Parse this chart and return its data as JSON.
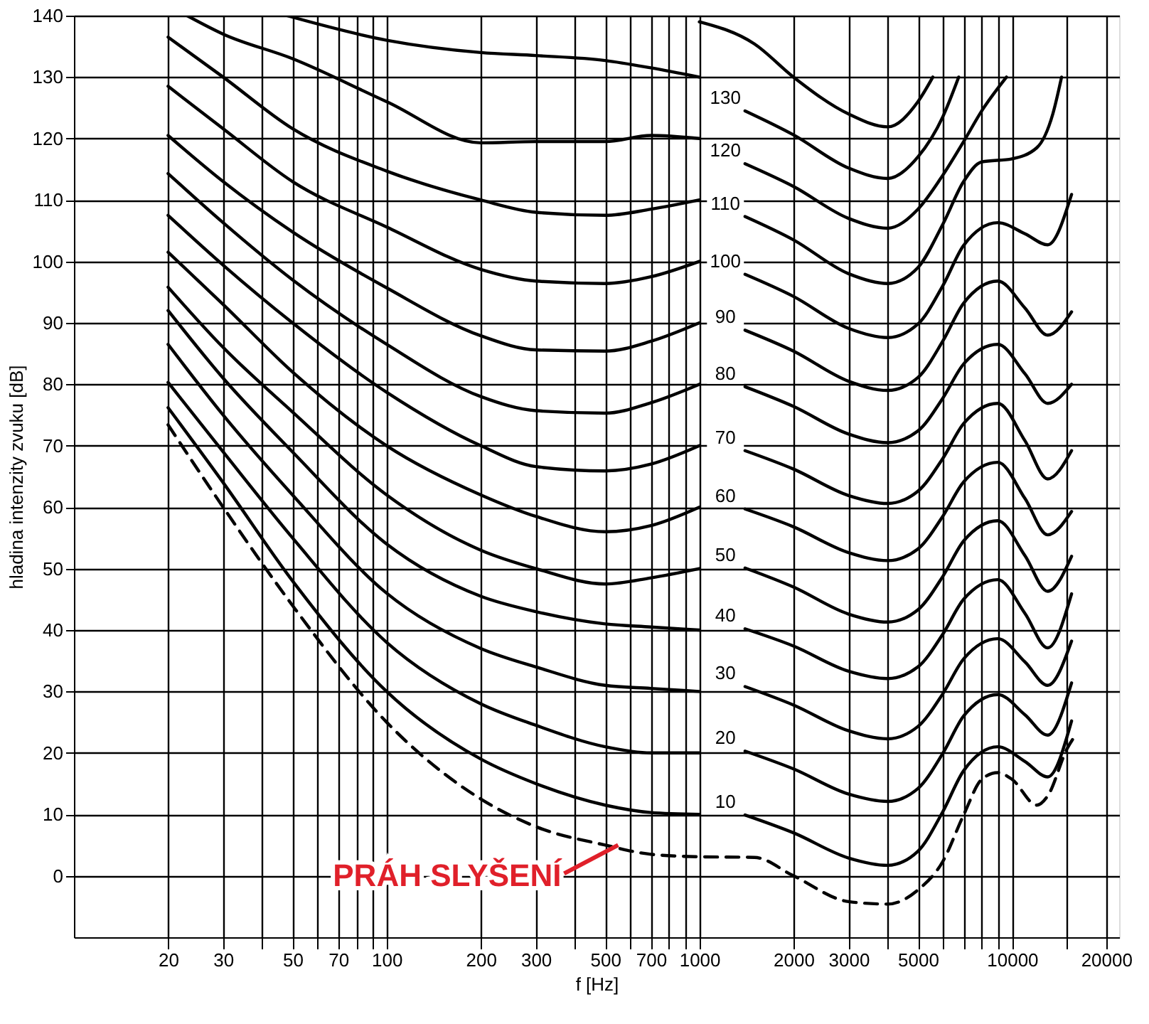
{
  "chart_data": {
    "type": "line",
    "xlabel": "f [Hz]",
    "ylabel": "hladina intenzity zvuku [dB]",
    "log": "x",
    "xlim": [
      10,
      22000
    ],
    "ylim": [
      -10,
      140
    ],
    "xticks": [
      20,
      30,
      {
        "value": 40,
        "label": null
      },
      50,
      {
        "value": 60,
        "label": null
      },
      70,
      {
        "value": 80,
        "label": null
      },
      {
        "value": 90,
        "label": null
      },
      100,
      200,
      300,
      {
        "value": 400,
        "label": null
      },
      500,
      {
        "value": 600,
        "label": null
      },
      700,
      {
        "value": 800,
        "label": null
      },
      {
        "value": 900,
        "label": null
      },
      1000,
      2000,
      3000,
      {
        "value": 4000,
        "label": null
      },
      5000,
      {
        "value": 6000,
        "label": null
      },
      {
        "value": 7000,
        "label": null
      },
      {
        "value": 8000,
        "label": null
      },
      {
        "value": 9000,
        "label": null
      },
      10000,
      {
        "value": 15000,
        "label": null
      },
      20000
    ],
    "yticks": [
      0,
      10,
      20,
      30,
      40,
      50,
      60,
      70,
      80,
      90,
      100,
      110,
      120,
      130,
      140
    ],
    "grid": true,
    "legend": false,
    "line_style": "solid",
    "series": [
      {
        "color": "#000000",
        "x": [
          1000,
          1500,
          2000,
          3000,
          4000,
          5000,
          5580
        ],
        "values": [
          139,
          135.4,
          130,
          124,
          121.9,
          126,
          130
        ]
      },
      {
        "name": "130",
        "color": "#000000",
        "x": [
          48,
          100,
          200,
          300,
          500,
          700,
          1000,
          1150,
          1400,
          2000,
          3000,
          4000,
          5000,
          6000,
          6750
        ],
        "values": [
          140,
          136,
          134,
          133.5,
          132.7,
          131.5,
          130,
          null,
          124.5,
          120.6,
          115.2,
          113.5,
          117,
          123.5,
          130
        ]
      },
      {
        "name": "120",
        "color": "#000000",
        "x": [
          23,
          30,
          50,
          100,
          200,
          300,
          500,
          700,
          1000,
          1150,
          1400,
          2000,
          3000,
          4000,
          5000,
          6000,
          7000,
          8000,
          9600
        ],
        "values": [
          140,
          137,
          133,
          126,
          119.3,
          119.5,
          119.5,
          120.5,
          120,
          null,
          115.9,
          112.2,
          107,
          105.4,
          108.5,
          114,
          119.5,
          124.5,
          130
        ]
      },
      {
        "name": "110",
        "color": "#000000",
        "x": [
          20,
          30,
          50,
          100,
          200,
          300,
          500,
          700,
          1000,
          1150,
          1400,
          2000,
          3000,
          4000,
          5000,
          6000,
          7000,
          8000,
          10000,
          12000,
          13500,
          14400
        ],
        "values": [
          136.5,
          130,
          121.6,
          114.7,
          110,
          108,
          107.5,
          108.5,
          110,
          null,
          107.3,
          103.5,
          98,
          96.4,
          99,
          106,
          113,
          116.2,
          116.7,
          118.5,
          124,
          130
        ]
      },
      {
        "name": "100",
        "color": "#000000",
        "x": [
          20,
          30,
          50,
          100,
          200,
          300,
          500,
          700,
          1000,
          1150,
          1400,
          2000,
          3000,
          4000,
          5000,
          6000,
          7000,
          9000,
          11000,
          13000,
          15500
        ],
        "values": [
          128.5,
          121.6,
          113,
          105.6,
          98.7,
          96.8,
          96.4,
          97.5,
          100,
          null,
          97.9,
          94.3,
          89.1,
          87.6,
          89.8,
          96,
          102.6,
          106.3,
          104.5,
          102.7,
          110.9
        ]
      },
      {
        "name": "90",
        "color": "#000000",
        "x": [
          20,
          30,
          50,
          100,
          200,
          300,
          500,
          700,
          1000,
          1150,
          1400,
          2000,
          3000,
          4000,
          5000,
          6000,
          7000,
          9000,
          11000,
          13000,
          15500
        ],
        "values": [
          120.5,
          113,
          104.8,
          95.7,
          87.9,
          85.6,
          85.4,
          87,
          90,
          null,
          88.8,
          85.4,
          80.5,
          79,
          81.1,
          87,
          93.2,
          96.8,
          92.4,
          88,
          91.8
        ]
      },
      {
        "name": "80",
        "color": "#000000",
        "x": [
          20,
          30,
          50,
          100,
          200,
          300,
          500,
          700,
          1000,
          1150,
          1400,
          2000,
          3000,
          4000,
          5000,
          6000,
          7000,
          9000,
          11000,
          13000,
          15500
        ],
        "values": [
          114.3,
          106.3,
          97,
          86.5,
          78,
          75.7,
          75.3,
          77,
          80,
          null,
          79.6,
          76.4,
          71.9,
          70.5,
          72.4,
          77.7,
          83.3,
          86.5,
          81.7,
          76.9,
          80
        ]
      },
      {
        "name": "70",
        "color": "#000000",
        "x": [
          20,
          30,
          50,
          100,
          200,
          300,
          500,
          700,
          1000,
          1150,
          1400,
          2000,
          3000,
          4000,
          5000,
          6000,
          7000,
          9000,
          11000,
          13000,
          15500
        ],
        "values": [
          107.5,
          99.4,
          90,
          78.7,
          70,
          66.6,
          65.9,
          67,
          70,
          null,
          69.2,
          66.2,
          61.9,
          60.6,
          62.6,
          67.9,
          73.6,
          76.9,
          70.8,
          64.6,
          69.2
        ]
      },
      {
        "name": "60",
        "color": "#000000",
        "x": [
          20,
          30,
          50,
          100,
          200,
          300,
          500,
          700,
          1000,
          1150,
          1400,
          2000,
          3000,
          4000,
          5000,
          6000,
          7000,
          9000,
          11000,
          13000,
          15500
        ],
        "values": [
          101.5,
          93,
          82,
          70,
          62,
          58.5,
          56,
          57,
          60,
          null,
          59.7,
          56.8,
          52.6,
          51.3,
          53.2,
          58.5,
          64.1,
          67.3,
          61.4,
          55.5,
          59.3
        ]
      },
      {
        "name": "50",
        "color": "#000000",
        "x": [
          20,
          30,
          50,
          100,
          200,
          300,
          500,
          700,
          1000,
          1150,
          1400,
          2000,
          3000,
          4000,
          5000,
          6000,
          7000,
          9000,
          11000,
          13000,
          15500
        ],
        "values": [
          95.8,
          86,
          75.5,
          62,
          53,
          50,
          47.5,
          48.5,
          50,
          null,
          50.1,
          47,
          42.6,
          41.3,
          43.3,
          48.7,
          54.5,
          57.8,
          52.1,
          46.3,
          52
        ]
      },
      {
        "name": "40",
        "color": "#000000",
        "x": [
          20,
          30,
          50,
          100,
          200,
          300,
          500,
          700,
          1000,
          1150,
          1400,
          2000,
          3000,
          4000,
          5000,
          6000,
          7000,
          9000,
          11000,
          13000,
          15500
        ],
        "values": [
          92,
          81,
          69,
          54,
          45.5,
          43,
          41,
          40.5,
          40,
          null,
          40.2,
          37.4,
          33.3,
          32.1,
          34,
          39.3,
          45,
          48.2,
          42.7,
          37.1,
          45.9
        ]
      },
      {
        "name": "30",
        "color": "#000000",
        "x": [
          20,
          30,
          50,
          100,
          200,
          300,
          500,
          700,
          1000,
          1150,
          1400,
          2000,
          3000,
          4000,
          5000,
          6000,
          7000,
          9000,
          11000,
          13000,
          15500
        ],
        "values": [
          86.5,
          75,
          62,
          46,
          37,
          34,
          31,
          30.5,
          30,
          null,
          30.8,
          27.8,
          23.6,
          22.3,
          24.3,
          29.6,
          35.3,
          38.6,
          34.8,
          31,
          38.2
        ]
      },
      {
        "name": "20",
        "color": "#000000",
        "x": [
          20,
          30,
          50,
          100,
          200,
          300,
          500,
          700,
          1000,
          1150,
          1400,
          2000,
          3000,
          4000,
          5000,
          6000,
          7000,
          9000,
          11000,
          13000,
          15500
        ],
        "values": [
          80.3,
          69,
          55,
          38,
          28,
          24.5,
          21,
          20,
          20,
          null,
          20.3,
          17.4,
          13.3,
          12.1,
          14.2,
          19.9,
          26,
          29.5,
          26.2,
          22.9,
          31.4
        ]
      },
      {
        "name": "10",
        "color": "#000000",
        "x": [
          20,
          30,
          50,
          100,
          200,
          300,
          500,
          700,
          1000,
          1150,
          1400,
          2000,
          3000,
          4000,
          5000,
          6000,
          7000,
          9000,
          11000,
          13000,
          15500
        ],
        "values": [
          76.2,
          64,
          48,
          30,
          19,
          15,
          11.5,
          10.3,
          10,
          null,
          9.9,
          7,
          2.9,
          1.7,
          4,
          10.4,
          17.1,
          21,
          18.6,
          16.1,
          25.2
        ]
      },
      {
        "color": "#000000",
        "line_style": "dashed",
        "x": [
          20,
          30,
          50,
          100,
          200,
          300,
          500,
          700,
          1000,
          1500,
          2000,
          3000,
          4000,
          5000,
          6000,
          7000,
          8000,
          9000,
          10000,
          12000,
          13000,
          15000,
          16000
        ],
        "values": [
          73.4,
          60,
          44,
          25,
          12.5,
          8,
          5,
          3.5,
          3.1,
          3,
          0,
          -4.2,
          -4.6,
          -2.3,
          2.3,
          9.9,
          15.7,
          16.8,
          15.7,
          11.5,
          13,
          20.7,
          23
        ]
      }
    ],
    "annotations": [
      {
        "text": "PRÁH SLYŠENÍ",
        "x": 550,
        "y": 5
      }
    ]
  }
}
